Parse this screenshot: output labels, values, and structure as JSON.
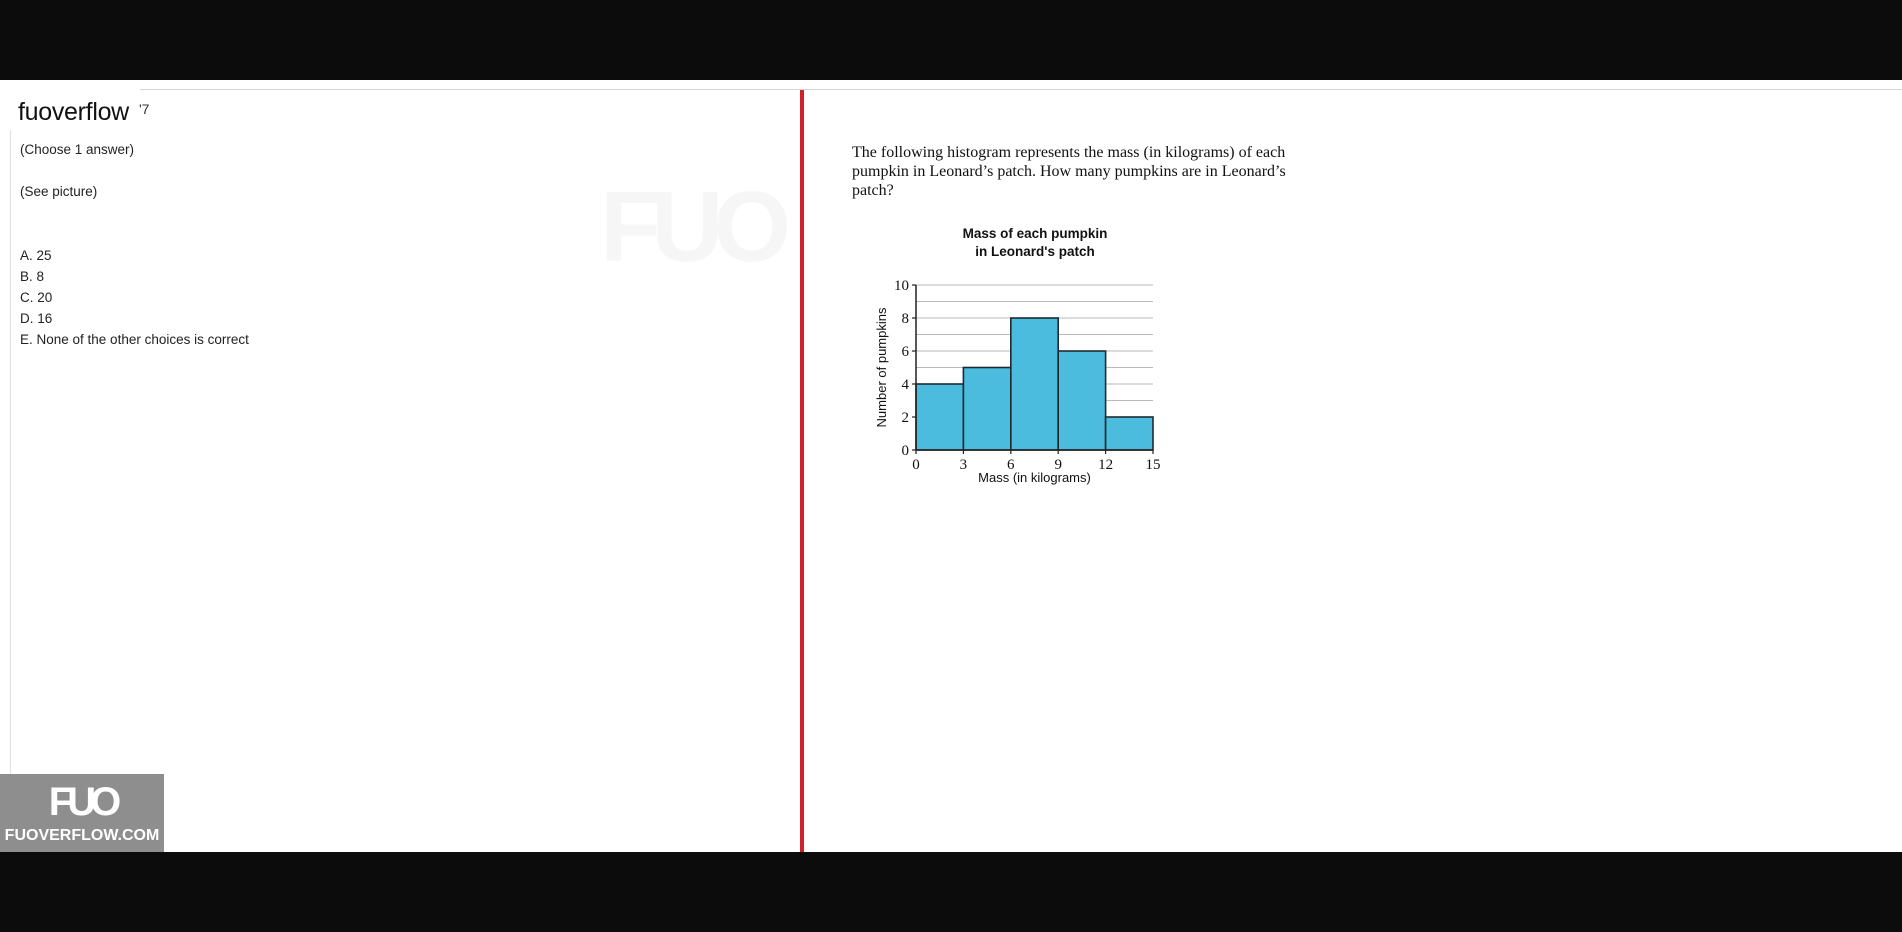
{
  "brand": {
    "title": "fuoverflow",
    "mark": "'7"
  },
  "question": {
    "instruction": "(Choose 1 answer)",
    "note": "(See picture)",
    "choices": [
      "A. 25",
      "B. 8",
      "C. 20",
      "D. 16",
      "E. None of the other choices is correct"
    ]
  },
  "prompt": "The following histogram represents the mass (in kilograms) of each pumpkin in Leonard’s patch. How many pumpkins are in Leonard’s patch?",
  "watermark": {
    "logo": "FUO",
    "site": "FUOVERFLOW.COM"
  },
  "colors": {
    "divider": "#d0202a",
    "bar_fill": "#4bbcde",
    "bar_stroke": "#1f2a30"
  },
  "chart_data": {
    "type": "bar",
    "title_lines": [
      "Mass of each pumpkin",
      "in Leonard's patch"
    ],
    "xlabel": "Mass (in kilograms)",
    "ylabel": "Number of pumpkins",
    "bins": [
      [
        0,
        3
      ],
      [
        3,
        6
      ],
      [
        6,
        9
      ],
      [
        9,
        12
      ],
      [
        12,
        15
      ]
    ],
    "values": [
      4,
      5,
      8,
      6,
      2
    ],
    "xticks": [
      "0",
      "3",
      "6",
      "9",
      "12",
      "15"
    ],
    "yticks": [
      "0",
      "2",
      "4",
      "6",
      "8",
      "10"
    ],
    "xlim": [
      0,
      15
    ],
    "ylim": [
      0,
      10
    ],
    "grid": true
  }
}
